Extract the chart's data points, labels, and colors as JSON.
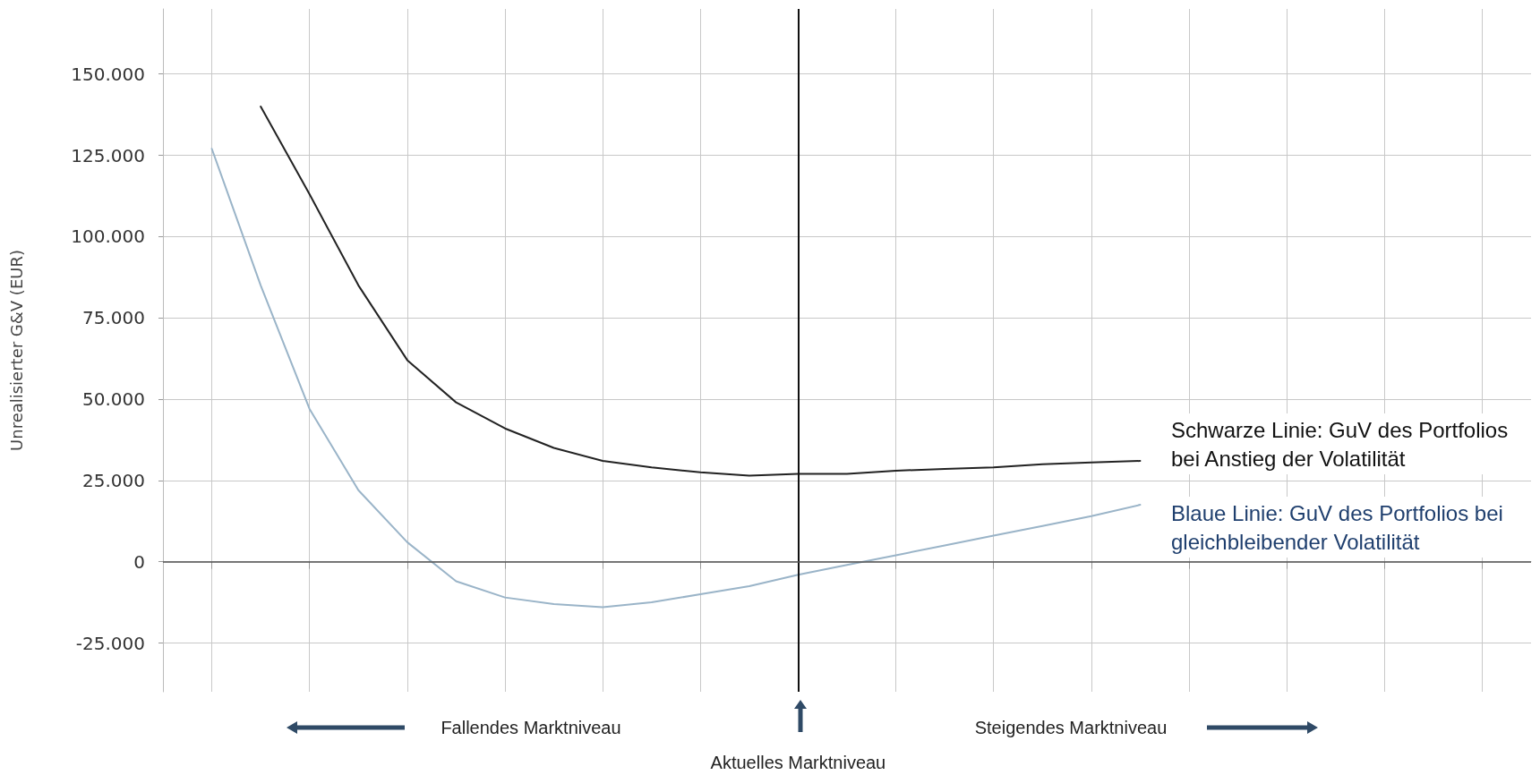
{
  "chart_data": {
    "type": "line",
    "ylabel": "Unrealisierter G&V (EUR)",
    "categories": [
      null,
      null,
      null,
      null,
      null,
      null,
      null,
      null,
      null,
      null,
      null,
      null,
      null,
      null,
      null,
      null,
      null,
      null,
      null,
      null,
      null,
      null,
      null,
      null,
      null,
      null,
      null,
      null,
      null
    ],
    "ylim": [
      -40000,
      170000
    ],
    "yticks": [
      {
        "value": -25000,
        "label": "-25.000"
      },
      {
        "value": 0,
        "label": "0"
      },
      {
        "value": 25000,
        "label": "25.000"
      },
      {
        "value": 50000,
        "label": "50.000"
      },
      {
        "value": 75000,
        "label": "75.000"
      },
      {
        "value": 100000,
        "label": "100.000"
      },
      {
        "value": 125000,
        "label": "125.000"
      },
      {
        "value": 150000,
        "label": "150.000"
      }
    ],
    "tick_labels": "y",
    "grid": true,
    "marker": "none",
    "line_style": "solid",
    "series": [
      {
        "color": "#222222",
        "values": [
          null,
          null,
          140000,
          113000,
          85000,
          62000,
          49000,
          41000,
          35000,
          31000,
          29000,
          27500,
          26500,
          27000,
          27000,
          28000,
          28500,
          29000,
          30000,
          30500,
          31000,
          null,
          null,
          null,
          null,
          null,
          null,
          null,
          null
        ]
      },
      {
        "color": "#9ab4c8",
        "values": [
          null,
          127000,
          85000,
          47000,
          22000,
          6000,
          -6000,
          -11000,
          -13000,
          -14000,
          -12500,
          -10000,
          -7500,
          -4000,
          -1000,
          2000,
          5000,
          8000,
          11000,
          14000,
          17500,
          null,
          null,
          null,
          null,
          null,
          null,
          null,
          null
        ]
      }
    ],
    "ref_lines": [
      {
        "axis": "y",
        "value": 0,
        "color": "#555555"
      }
    ],
    "annotations": [
      "Schwarze Linie: GuV des Portfolios bei Anstieg der Volatilität",
      "Blaue Linie: GuV des Portfolios bei gleichbleibender Volatilität",
      "Fallendes Marktniveau",
      "Steigendes Marktniveau",
      "Aktuelles Marktniveau"
    ]
  }
}
